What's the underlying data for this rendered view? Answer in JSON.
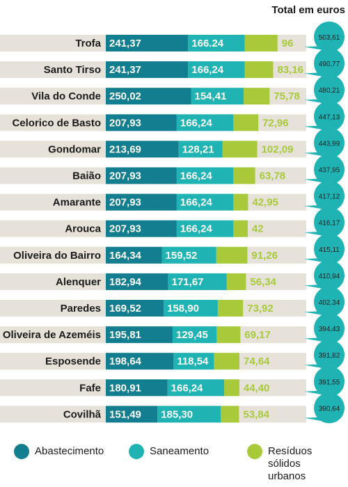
{
  "header": {
    "total_label": "Total em euros"
  },
  "colors": {
    "abastecimento": "#137e8f",
    "saneamento": "#1fb3b4",
    "residuos": "#a8c93a",
    "row_bg": "#e6e2da",
    "bubble": "#1fb3b4"
  },
  "legend": [
    {
      "key": "abastecimento",
      "label": "Abastecimento"
    },
    {
      "key": "saneamento",
      "label": "Saneamento"
    },
    {
      "key": "residuos",
      "label": "Resíduos\nsólidos\nurbanos"
    }
  ],
  "chart_data": {
    "type": "bar",
    "orientation": "horizontal",
    "stacked": true,
    "categories": [
      "Trofa",
      "Santo Tirso",
      "Vila do Conde",
      "Celorico de Basto",
      "Gondomar",
      "Baião",
      "Amarante",
      "Arouca",
      "Oliveira do Bairro",
      "Alenquer",
      "Paredes",
      "Oliveira de Azeméis",
      "Esposende",
      "Fafe",
      "Covilhã"
    ],
    "series": [
      {
        "name": "Abastecimento",
        "values": [
          241.37,
          241.37,
          250.02,
          207.93,
          213.69,
          207.93,
          207.93,
          207.93,
          164.34,
          182.94,
          169.52,
          195.81,
          198.64,
          180.91,
          151.49
        ],
        "labels": [
          "241,37",
          "241,37",
          "250,02",
          "207,93",
          "213,69",
          "207,93",
          "207,93",
          "207,93",
          "164,34",
          "182,94",
          "169,52",
          "195,81",
          "198,64",
          "180,91",
          "151,49"
        ]
      },
      {
        "name": "Saneamento",
        "values": [
          166.24,
          166.24,
          154.41,
          166.24,
          128.21,
          166.24,
          166.24,
          166.24,
          159.52,
          171.67,
          158.9,
          129.45,
          118.54,
          166.24,
          185.3
        ],
        "labels": [
          "166.24",
          "166,24",
          "154,41",
          "166,24",
          "128,21",
          "166,24",
          "166,24",
          "166,24",
          "159,52",
          "171,67",
          "158,90",
          "129,45",
          "118,54",
          "166,24",
          "185,30"
        ]
      },
      {
        "name": "Resíduos sólidos urbanos",
        "values": [
          96,
          83.16,
          75.78,
          72.96,
          102.09,
          63.78,
          42.95,
          42,
          91.26,
          56.34,
          73.92,
          69.17,
          74.64,
          44.4,
          53.84
        ],
        "labels": [
          "96",
          "83,16",
          "75,78",
          "72,96",
          "102,09",
          "63,78",
          "42,95",
          "42",
          "91,26",
          "56,34",
          "73,92",
          "69,17",
          "74,64",
          "44,40",
          "53,84"
        ]
      }
    ],
    "totals": [
      503.61,
      490.77,
      480.21,
      447.13,
      443.99,
      437.95,
      417.12,
      416.17,
      415.11,
      410.94,
      402.34,
      394.43,
      391.82,
      391.55,
      390.64
    ],
    "total_labels": [
      "503,61",
      "490,77",
      "480,21",
      "447,13",
      "443,99",
      "437,95",
      "417,12",
      "416,17",
      "415,11",
      "410,94",
      "402,34",
      "394,43",
      "391,82",
      "391,55",
      "390,64"
    ],
    "title": "",
    "xlabel": "",
    "ylabel": ""
  }
}
